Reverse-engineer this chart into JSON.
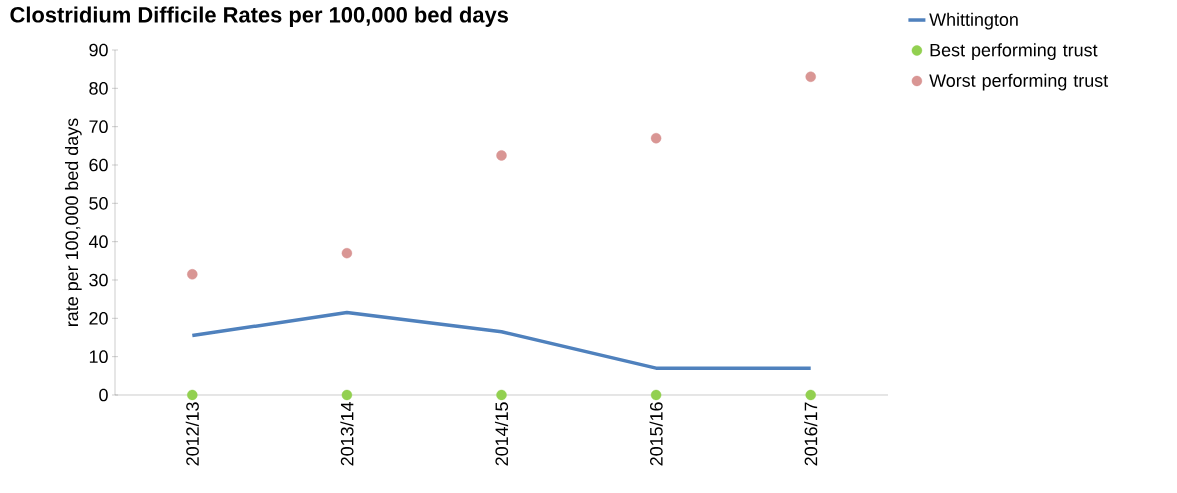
{
  "chart_data": {
    "type": "line",
    "title": "Clostridium Difficile Rates per 100,000 bed days",
    "ylabel": "rate per 100,000 bed days",
    "categories": [
      "2012/13",
      "2013/14",
      "2014/15",
      "2015/16",
      "2016/17"
    ],
    "series": [
      {
        "name": "Whittington",
        "type": "line",
        "color": "#4f81bd",
        "values": [
          15.5,
          21.5,
          16.5,
          7,
          7
        ]
      },
      {
        "name": "Best performing trust",
        "type": "scatter",
        "color": "#92d050",
        "values": [
          0,
          0,
          0,
          0,
          0
        ]
      },
      {
        "name": "Worst performing trust",
        "type": "scatter",
        "color": "#d99694",
        "values": [
          31.5,
          37,
          62.5,
          67,
          83
        ]
      }
    ],
    "ylim": [
      0,
      90
    ],
    "yticks": [
      0,
      10,
      20,
      30,
      40,
      50,
      60,
      70,
      80,
      90
    ],
    "grid": false,
    "legend": "right"
  }
}
